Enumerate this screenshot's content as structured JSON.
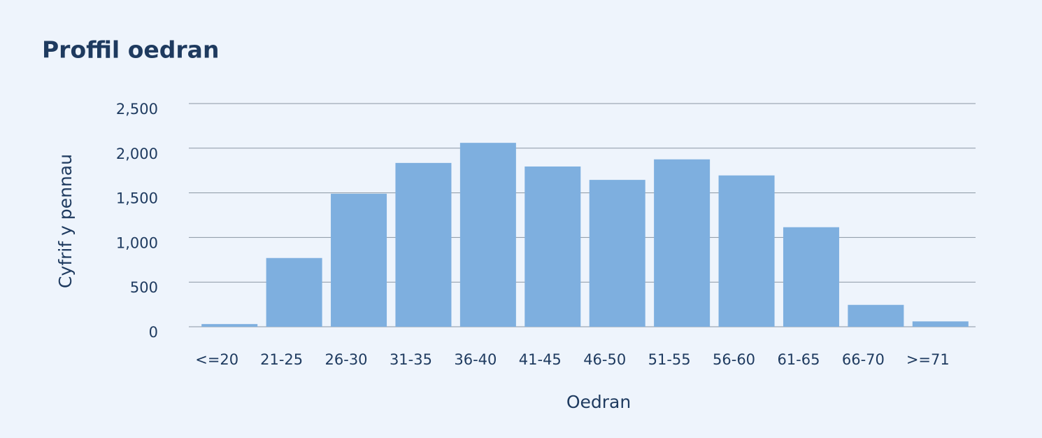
{
  "chart_data": {
    "type": "bar",
    "title": "Proffil oedran",
    "x_label": "Oedran",
    "y_label": "Cyfrif y pennau",
    "categories": [
      "<=20",
      "21-25",
      "26-30",
      "31-35",
      "36-40",
      "41-45",
      "46-50",
      "51-55",
      "56-60",
      "61-65",
      "66-70",
      ">=71"
    ],
    "values": [
      30,
      770,
      1490,
      1835,
      2060,
      1795,
      1645,
      1875,
      1695,
      1115,
      245,
      60
    ],
    "color": "#7eafdf",
    "ylim": [
      0,
      2500
    ],
    "yticks": [
      0,
      500,
      {
        "value": 1000,
        "label": "1,000"
      },
      {
        "value": 1500,
        "label": "1,500"
      },
      {
        "value": 2000,
        "label": "2,000"
      },
      {
        "value": 2500,
        "label": "2,500"
      }
    ],
    "grid": true
  }
}
